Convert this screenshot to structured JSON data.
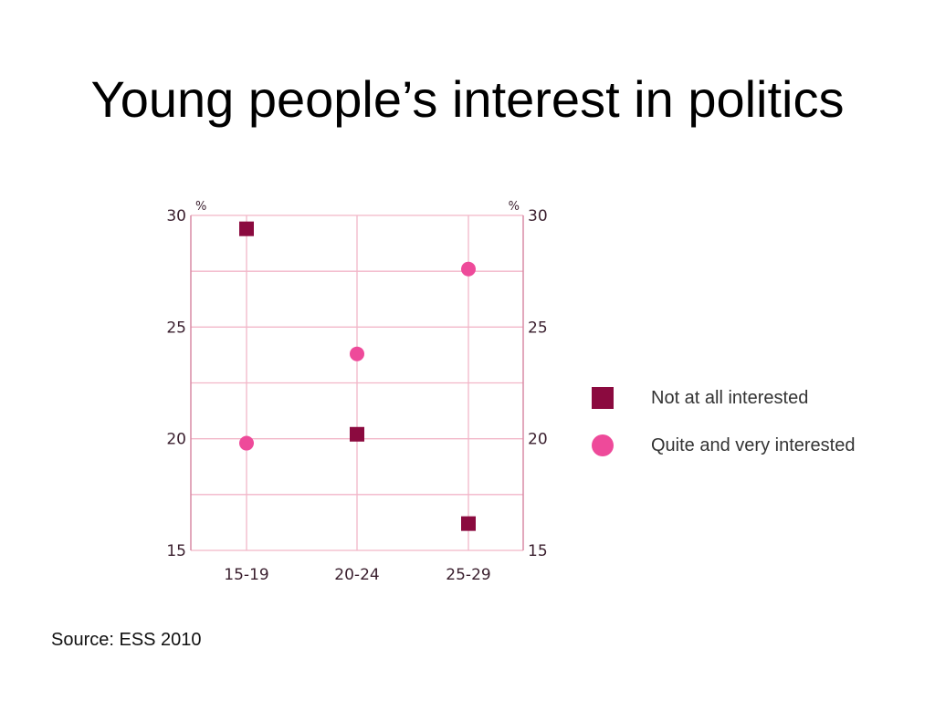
{
  "slide": {
    "title": "Young people’s interest in politics",
    "source": "Source: ESS 2010"
  },
  "colors": {
    "not_at_all": "#8b0a3f",
    "quite_very": "#ee4a9a",
    "grid": "#f2b6c8",
    "axis": "#d98ba5"
  },
  "chart_data": {
    "type": "scatter",
    "categories": [
      "15-19",
      "20-24",
      "25-29"
    ],
    "y_unit": "%",
    "ylim": [
      15,
      30
    ],
    "yticks": [
      "15",
      "20",
      "25",
      "30"
    ],
    "grid": true,
    "legend_position": "right",
    "series": [
      {
        "name": "Not at all interested",
        "marker": "square",
        "values": [
          29.4,
          20.2,
          16.2
        ]
      },
      {
        "name": "Quite and very interested",
        "marker": "circle",
        "values": [
          19.8,
          23.8,
          27.6
        ]
      }
    ]
  }
}
